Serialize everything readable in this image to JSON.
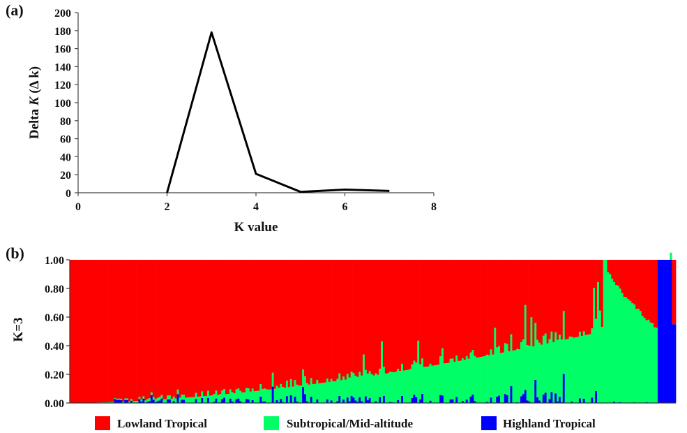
{
  "panels": {
    "a": "(a)",
    "b": "(b)"
  },
  "chart_data": [
    {
      "type": "line",
      "title": "",
      "xlabel": "K value",
      "ylabel_prefix": "Delta ",
      "ylabel_italic": "K",
      "ylabel_suffix": " (Δ k)",
      "x": [
        2,
        3,
        4,
        5,
        6,
        7
      ],
      "series": [
        {
          "values": [
            0,
            178,
            21,
            1,
            3.5,
            2
          ]
        }
      ],
      "xlim": [
        0,
        8
      ],
      "ylim": [
        0,
        200
      ],
      "xticks": [
        "0",
        "2",
        "4",
        "6",
        "8"
      ],
      "yticks": [
        "0",
        "20",
        "40",
        "60",
        "80",
        "100",
        "120",
        "140",
        "160",
        "180",
        "200"
      ],
      "line_color": "#000000",
      "grid": false
    },
    {
      "type": "area",
      "subtype": "stacked-bar-structure-plot",
      "ylabel": "K=3",
      "ylim": [
        0,
        1
      ],
      "yticks": [
        "0.00",
        "0.20",
        "0.40",
        "0.60",
        "0.80",
        "1.00"
      ],
      "individuals": 300,
      "legend_position": "bottom",
      "series": [
        {
          "name": "Lowland Tropical",
          "color": "#ff0000"
        },
        {
          "name": "Subtropical/Mid-altitude",
          "color": "#00ff66"
        },
        {
          "name": "Highland Tropical",
          "color": "#0000ff"
        }
      ],
      "sorted_segments": [
        {
          "group": "Lowland Tropical",
          "fraction_of_bars": 0.88,
          "green_start": 0.0,
          "green_end": 0.5,
          "blue_max": 0.08
        },
        {
          "group": "Subtropical/Mid-altitude",
          "fraction_of_bars": 0.09,
          "green_start": 1.0,
          "green_end": 0.5,
          "blue_max": 0.01
        },
        {
          "group": "Highland Tropical",
          "fraction_of_bars": 0.03,
          "green_start": 0.0,
          "green_end": 0.0,
          "blue_max": 1.0
        }
      ]
    }
  ]
}
